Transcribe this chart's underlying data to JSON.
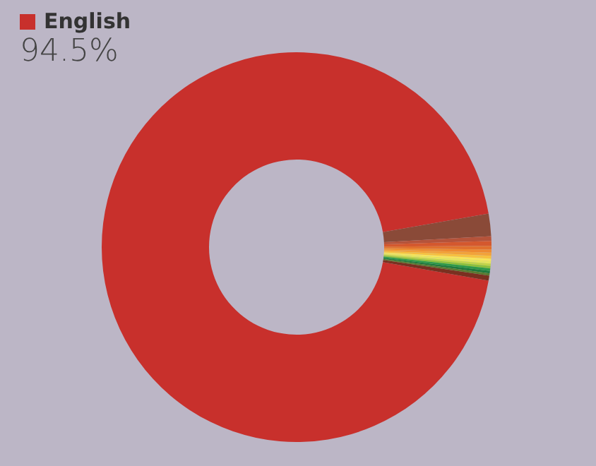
{
  "chart_data": {
    "type": "donut",
    "categories": [
      "English",
      null,
      null,
      null,
      null,
      null,
      null,
      null,
      null,
      null,
      null,
      null,
      null,
      null,
      null,
      null
    ],
    "values": [
      94.5,
      1.85,
      0.4,
      0.4,
      0.3,
      0.25,
      0.25,
      0.25,
      0.2,
      0.2,
      0.2,
      0.2,
      0.2,
      0.2,
      0.2,
      0.4
    ],
    "colors": [
      "#c8302c",
      "#8a4a38",
      "#b5533a",
      "#d4582e",
      "#e0702e",
      "#ee8a30",
      "#f2a23a",
      "#f6c040",
      "#f7e45a",
      "#e4e45c",
      "#c0d448",
      "#8cc03c",
      "#2e9a48",
      "#1e7a3c",
      "#5a7a30",
      "#7a3020"
    ],
    "value_labels": [
      "94.5%",
      null,
      null,
      null,
      null,
      null,
      null,
      null,
      null,
      null,
      null,
      null,
      null,
      null,
      null,
      null
    ],
    "legend": "top left"
  }
}
